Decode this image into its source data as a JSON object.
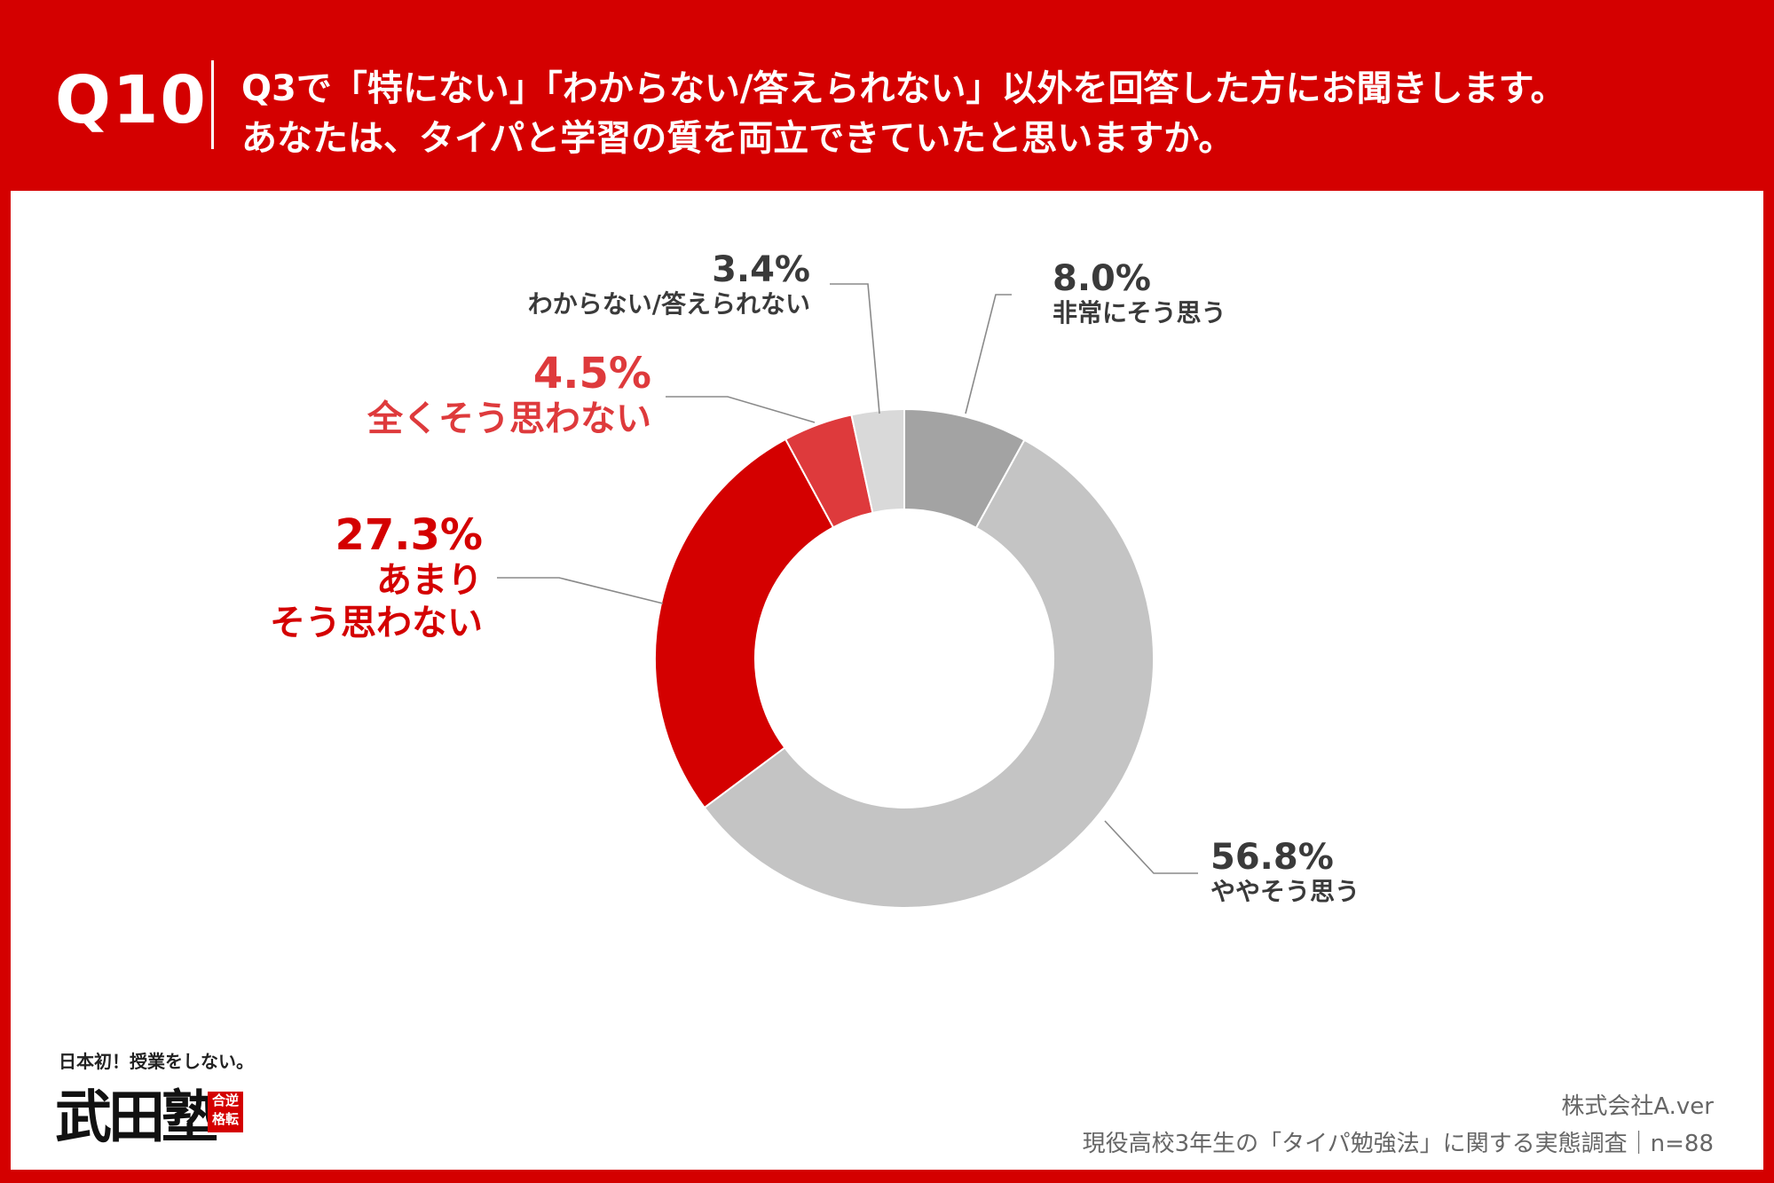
{
  "header": {
    "question_number": "Q10",
    "line1": "Q3で「特にない」「わからない/答えられない」以外を回答した方にお聞きします。",
    "line2": "あなたは、タイパと学習の質を両立できていたと思いますか。"
  },
  "chart_data": {
    "type": "pie",
    "donut": true,
    "slices": [
      {
        "label": "非常にそう思う",
        "value": 8.0,
        "value_label": "8.0%",
        "color": "#a3a3a3"
      },
      {
        "label": "ややそう思う",
        "value": 56.8,
        "value_label": "56.8%",
        "color": "#c4c4c4"
      },
      {
        "label": "あまりそう思わない",
        "value": 27.3,
        "value_label": "27.3%",
        "color": "#d40000"
      },
      {
        "label": "全くそう思わない",
        "value": 4.5,
        "value_label": "4.5%",
        "color": "#de3a3c"
      },
      {
        "label": "わからない/答えられない",
        "value": 3.4,
        "value_label": "3.4%",
        "color": "#d9d9d9"
      }
    ]
  },
  "labels": {
    "very": {
      "pct": "8.0%",
      "cat": "非常にそう思う"
    },
    "somewhat": {
      "pct": "56.8%",
      "cat": "ややそう思う"
    },
    "not_much": {
      "pct": "27.3%",
      "cat1": "あまり",
      "cat2": "そう思わない"
    },
    "not_at_all": {
      "pct": "4.5%",
      "cat": "全くそう思わない"
    },
    "unknown": {
      "pct": "3.4%",
      "cat": "わからない/答えられない"
    }
  },
  "logo": {
    "tagline": "日本初！授業をしない。",
    "name": "武田塾",
    "stamp": "合逆格転"
  },
  "source": {
    "company": "株式会社A.ver",
    "survey": "現役高校3年生の「タイパ勉強法」に関する実態調査｜n=88"
  },
  "colors": {
    "accent": "#d40000",
    "label_dark": "#3a3a3a",
    "label_red": "#d40000",
    "label_red_light": "#de3a3c"
  }
}
